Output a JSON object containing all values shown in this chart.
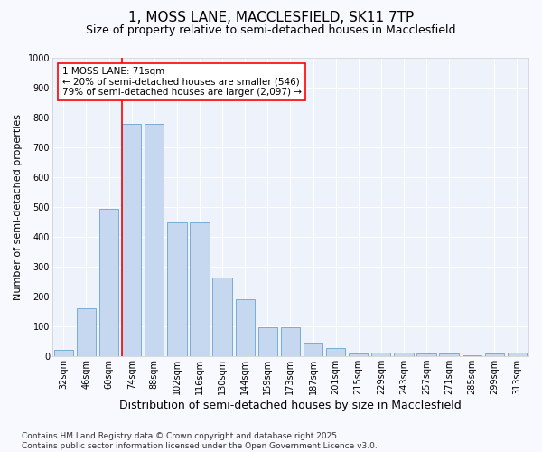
{
  "title": "1, MOSS LANE, MACCLESFIELD, SK11 7TP",
  "subtitle": "Size of property relative to semi-detached houses in Macclesfield",
  "xlabel": "Distribution of semi-detached houses by size in Macclesfield",
  "ylabel": "Number of semi-detached properties",
  "categories": [
    "32sqm",
    "46sqm",
    "60sqm",
    "74sqm",
    "88sqm",
    "102sqm",
    "116sqm",
    "130sqm",
    "144sqm",
    "159sqm",
    "173sqm",
    "187sqm",
    "201sqm",
    "215sqm",
    "229sqm",
    "243sqm",
    "257sqm",
    "271sqm",
    "285sqm",
    "299sqm",
    "313sqm"
  ],
  "values": [
    22,
    160,
    495,
    780,
    780,
    450,
    450,
    265,
    190,
    98,
    98,
    47,
    27,
    10,
    12,
    12,
    10,
    10,
    4,
    10,
    12
  ],
  "bar_color": "#c5d8f0",
  "bar_edge_color": "#7aadd4",
  "background_color": "#eef2fb",
  "grid_color": "#ffffff",
  "red_line_index": 3,
  "annotation_text": "1 MOSS LANE: 71sqm\n← 20% of semi-detached houses are smaller (546)\n79% of semi-detached houses are larger (2,097) →",
  "ylim": [
    0,
    1000
  ],
  "yticks": [
    0,
    100,
    200,
    300,
    400,
    500,
    600,
    700,
    800,
    900,
    1000
  ],
  "footer": "Contains HM Land Registry data © Crown copyright and database right 2025.\nContains public sector information licensed under the Open Government Licence v3.0.",
  "title_fontsize": 11,
  "subtitle_fontsize": 9,
  "xlabel_fontsize": 9,
  "ylabel_fontsize": 8,
  "tick_fontsize": 7,
  "annotation_fontsize": 7.5,
  "footer_fontsize": 6.5,
  "fig_bg": "#f8f8ff"
}
